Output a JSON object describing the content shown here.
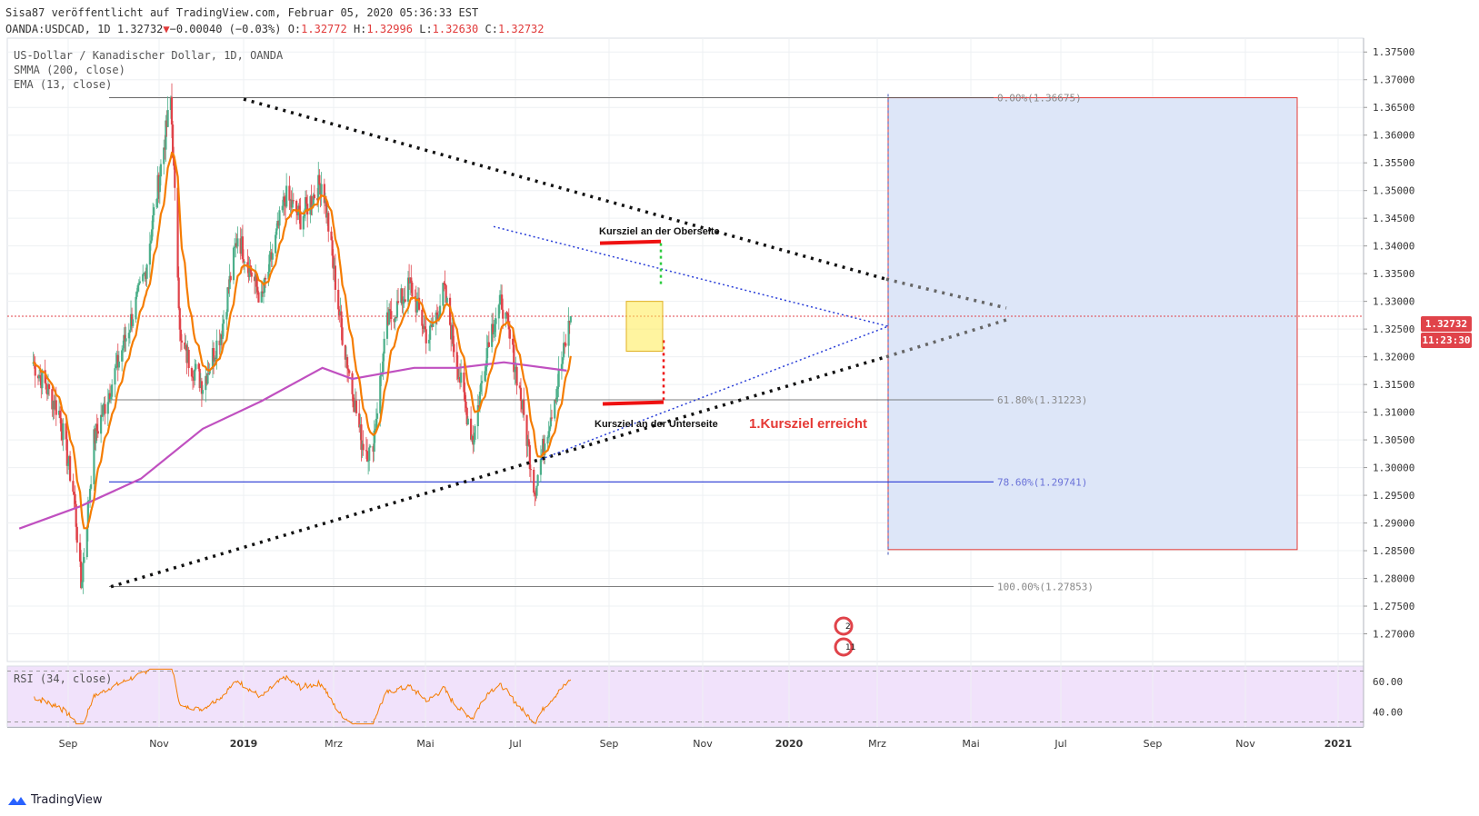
{
  "header": {
    "publish_line": "Sisa87 veröffentlicht auf TradingView.com, Februar 05, 2020 05:36:33 EST",
    "symbol_line": "OANDA:USDCAD, 1D 1.32732",
    "change": "−0.00040 (−0.03%)",
    "o_label": "O:",
    "o_value": "1.32772",
    "h_label": "H:",
    "h_value": "1.32996",
    "l_label": "L:",
    "l_value": "1.32630",
    "c_label": "C:",
    "c_value": "1.32732"
  },
  "legend": {
    "title": "US-Dollar / Kanadischer Dollar, 1D, OANDA",
    "smma": "SMMA (200, close)",
    "ema": "EMA (13, close)",
    "rsi": "RSI (34, close)"
  },
  "price_tag": {
    "value": "1.32732",
    "time": "11:23:30"
  },
  "annotations": {
    "upper_target": "Kursziel an der Oberseite",
    "lower_target": "Kursziel an der Unterseite",
    "reached": "1.Kursziel erreicht"
  },
  "fib_labels": [
    "0.00%(1.36675)",
    "61.80%(1.31223)",
    "78.60%(1.29741)",
    "100.00%(1.27853)"
  ],
  "event_badges": [
    "2",
    "11"
  ],
  "footer": {
    "brand": "TradingView"
  },
  "colors": {
    "bull": "#4caf8a",
    "bear": "#e0434a",
    "ema": "#f57c00",
    "smma": "#c050c0",
    "fib_box": "#dde6f8",
    "fib_border": "#e53935",
    "grid": "#eef0f3",
    "rsi_bg": "#f1e2fb",
    "rsi_line": "#f57c00"
  },
  "chart_data": {
    "type": "candlestick",
    "symbol": "OANDA:USDCAD",
    "interval": "1D",
    "ylim": [
      1.265,
      1.3775
    ],
    "y_ticks": [
      1.27,
      1.275,
      1.28,
      1.285,
      1.29,
      1.295,
      1.3,
      1.305,
      1.31,
      1.315,
      1.32,
      1.325,
      1.33,
      1.335,
      1.34,
      1.345,
      1.35,
      1.355,
      1.36,
      1.365,
      1.37,
      1.375
    ],
    "y_tick_labels": [
      "1.27000",
      "1.27500",
      "1.28000",
      "1.28500",
      "1.29000",
      "1.29500",
      "1.30000",
      "1.30500",
      "1.31000",
      "1.31500",
      "1.32000",
      "1.32500",
      "1.33000",
      "1.33500",
      "1.34000",
      "1.34500",
      "1.35000",
      "1.35500",
      "1.36000",
      "1.36500",
      "1.37000",
      "1.37500"
    ],
    "x_ticks": [
      "Sep",
      "Nov",
      "2019",
      "Mrz",
      "Mai",
      "Jul",
      "Sep",
      "Nov",
      "2020",
      "Mrz",
      "Mai",
      "Jul",
      "Sep",
      "Nov",
      "2021"
    ],
    "x_tick_bold": [
      "2019",
      "2020",
      "2021"
    ],
    "price_key_points": [
      [
        "2018-08-15",
        1.319
      ],
      [
        "2018-09-10",
        1.31
      ],
      [
        "2018-09-25",
        1.295
      ],
      [
        "2018-10-02",
        1.2785
      ],
      [
        "2018-10-15",
        1.305
      ],
      [
        "2018-11-10",
        1.32
      ],
      [
        "2018-12-05",
        1.335
      ],
      [
        "2018-12-31",
        1.3665
      ],
      [
        "2019-01-10",
        1.322
      ],
      [
        "2019-02-01",
        1.315
      ],
      [
        "2019-02-20",
        1.325
      ],
      [
        "2019-03-08",
        1.342
      ],
      [
        "2019-04-01",
        1.33
      ],
      [
        "2019-04-25",
        1.349
      ],
      [
        "2019-05-10",
        1.345
      ],
      [
        "2019-06-01",
        1.352
      ],
      [
        "2019-06-20",
        1.325
      ],
      [
        "2019-07-10",
        1.305
      ],
      [
        "2019-07-20",
        1.302
      ],
      [
        "2019-08-05",
        1.326
      ],
      [
        "2019-08-28",
        1.333
      ],
      [
        "2019-09-15",
        1.323
      ],
      [
        "2019-10-01",
        1.332
      ],
      [
        "2019-10-20",
        1.313
      ],
      [
        "2019-10-30",
        1.305
      ],
      [
        "2019-11-15",
        1.324
      ],
      [
        "2019-11-28",
        1.33
      ],
      [
        "2019-12-15",
        1.315
      ],
      [
        "2019-12-31",
        1.296
      ],
      [
        "2020-01-10",
        1.305
      ],
      [
        "2020-01-25",
        1.317
      ],
      [
        "2020-02-05",
        1.3273
      ]
    ],
    "ema13": {
      "name": "EMA (13, close)",
      "color": "#f57c00"
    },
    "smma200": {
      "name": "SMMA (200, close)",
      "color": "#c050c0",
      "points": [
        [
          "2018-08-01",
          1.289
        ],
        [
          "2018-10-01",
          1.293
        ],
        [
          "2018-12-01",
          1.298
        ],
        [
          "2019-02-01",
          1.307
        ],
        [
          "2019-04-01",
          1.312
        ],
        [
          "2019-06-01",
          1.318
        ],
        [
          "2019-07-01",
          1.316
        ],
        [
          "2019-09-01",
          1.318
        ],
        [
          "2019-10-15",
          1.318
        ],
        [
          "2019-11-30",
          1.319
        ],
        [
          "2020-02-01",
          1.3175
        ]
      ]
    },
    "fibonacci": [
      {
        "level": "0.00%",
        "price": 1.36675
      },
      {
        "level": "61.80%",
        "price": 1.31223
      },
      {
        "level": "78.60%",
        "price": 1.29741
      },
      {
        "level": "100.00%",
        "price": 1.27853
      }
    ],
    "last_price": 1.32732,
    "rsi": {
      "name": "RSI (34, close)",
      "ylim": [
        30,
        70
      ],
      "ticks": [
        40,
        60
      ],
      "tick_labels": [
        "40.00",
        "60.00"
      ],
      "bands": [
        33.3,
        66.7
      ]
    }
  }
}
